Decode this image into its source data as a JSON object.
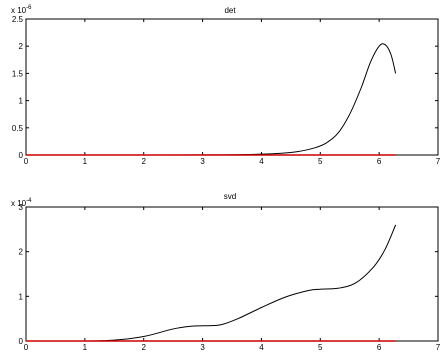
{
  "chart_data": [
    {
      "type": "line",
      "title": "det",
      "xlabel": "",
      "ylabel": "",
      "y_multiplier": "x 10",
      "y_exponent": "-6",
      "xlim": [
        0,
        7
      ],
      "ylim": [
        0,
        2.5
      ],
      "x_ticks": [
        "0",
        "1",
        "2",
        "3",
        "4",
        "5",
        "6",
        "7"
      ],
      "y_ticks": [
        "0",
        "0.5",
        "1",
        "1.5",
        "2",
        "2.5"
      ],
      "grid": false,
      "series": [
        {
          "color": "#000000",
          "x": [
            0,
            1,
            2,
            3,
            3.5,
            4,
            4.3,
            4.6,
            4.9,
            5.1,
            5.3,
            5.5,
            5.7,
            5.85,
            6.0,
            6.1,
            6.2,
            6.28
          ],
          "y": [
            0,
            0,
            0,
            0.002,
            0.005,
            0.015,
            0.03,
            0.06,
            0.13,
            0.22,
            0.4,
            0.75,
            1.25,
            1.7,
            2.0,
            2.03,
            1.85,
            1.5
          ]
        },
        {
          "color": "#cc0000",
          "x": [
            0,
            6.28
          ],
          "y": [
            0,
            0
          ]
        }
      ]
    },
    {
      "type": "line",
      "title": "svd",
      "xlabel": "",
      "ylabel": "",
      "y_multiplier": "x 10",
      "y_exponent": "-4",
      "xlim": [
        0,
        7
      ],
      "ylim": [
        0,
        3
      ],
      "x_ticks": [
        "0",
        "1",
        "2",
        "3",
        "4",
        "5",
        "6",
        "7"
      ],
      "y_ticks": [
        "0",
        "1",
        "2",
        "3"
      ],
      "grid": false,
      "series": [
        {
          "color": "#000000",
          "x": [
            0,
            1,
            1.5,
            2,
            2.5,
            2.8,
            3.0,
            3.3,
            3.6,
            4.0,
            4.4,
            4.8,
            5.0,
            5.3,
            5.6,
            5.9,
            6.1,
            6.28
          ],
          "y": [
            0,
            0,
            0.02,
            0.1,
            0.27,
            0.33,
            0.34,
            0.36,
            0.5,
            0.75,
            0.98,
            1.13,
            1.16,
            1.18,
            1.3,
            1.65,
            2.05,
            2.6
          ]
        },
        {
          "color": "#cc0000",
          "x": [
            0,
            6.28
          ],
          "y": [
            0,
            0
          ]
        }
      ]
    }
  ]
}
